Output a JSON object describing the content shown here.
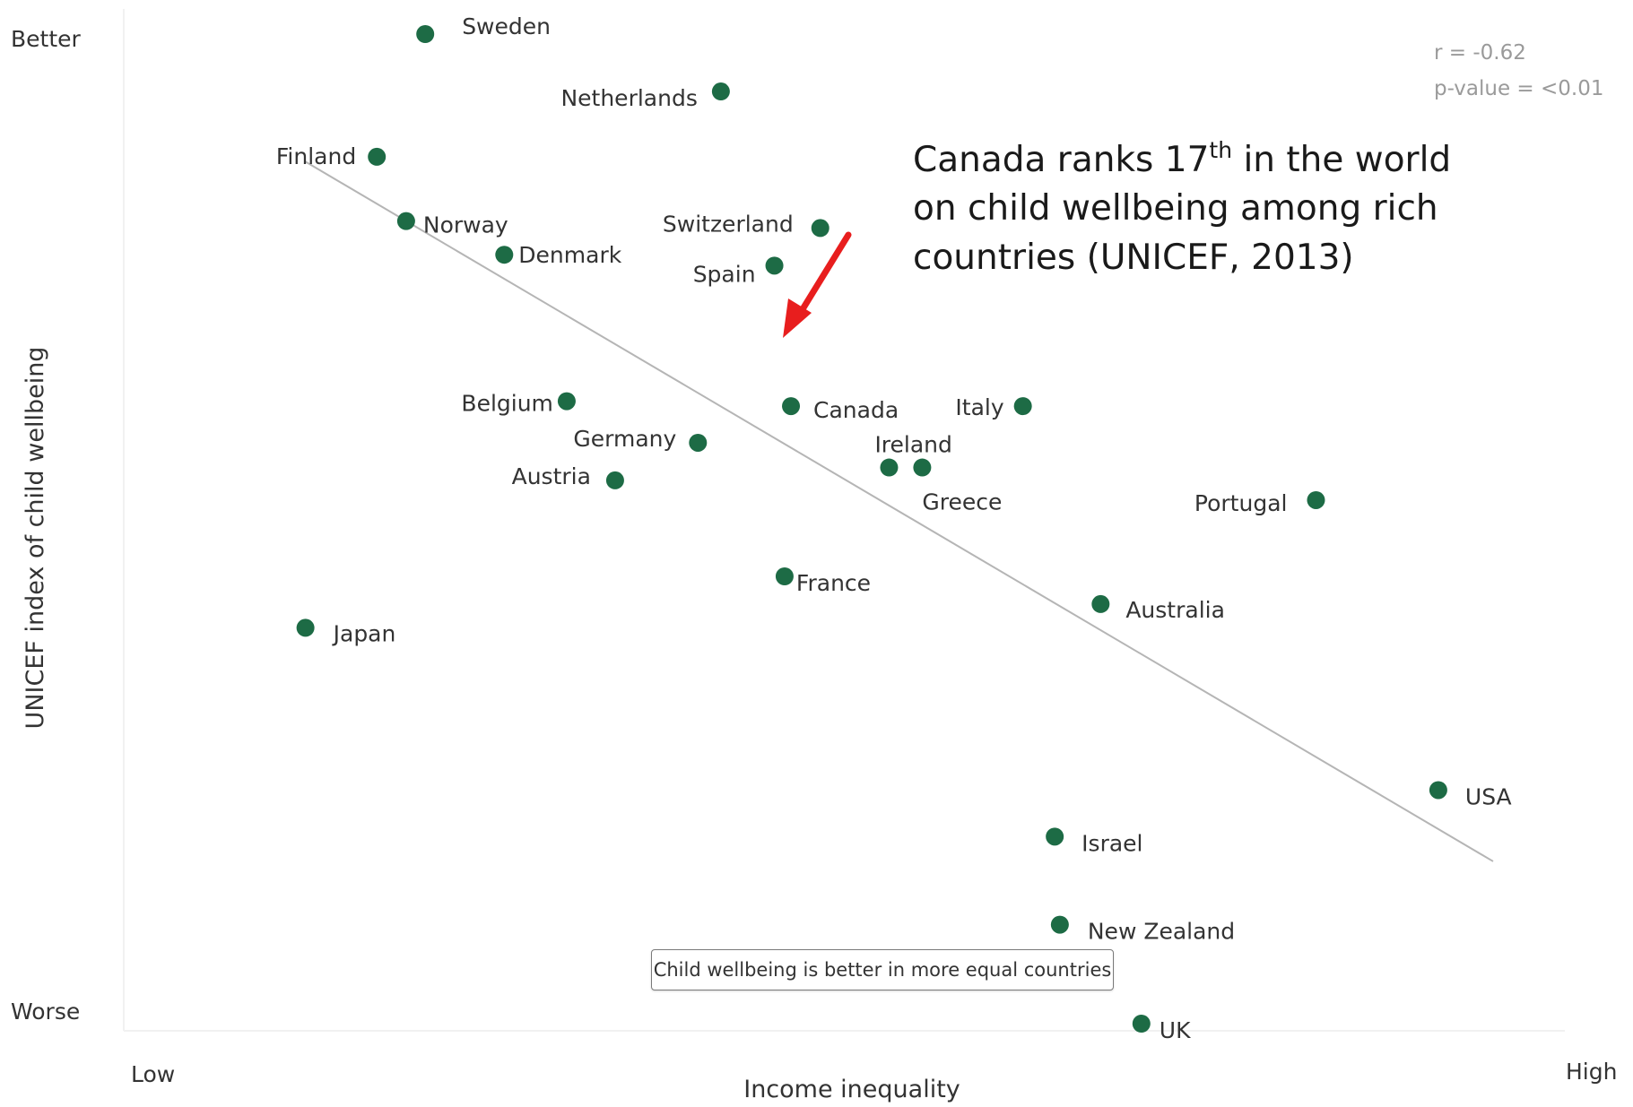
{
  "chart_data": {
    "type": "scatter",
    "xlabel": "Income inequality",
    "ylabel": "UNICEF index of child wellbeing",
    "x_tick_labels": {
      "low": "Low",
      "high": "High"
    },
    "y_tick_labels": {
      "top": "Better",
      "bottom": "Worse"
    },
    "xlim": [
      0,
      100
    ],
    "ylim": [
      0,
      100
    ],
    "points": [
      {
        "label": "Sweden",
        "x": 16.2,
        "y": 100.0
      },
      {
        "label": "Netherlands",
        "x": 39.4,
        "y": 94.2
      },
      {
        "label": "Finland",
        "x": 12.4,
        "y": 87.6
      },
      {
        "label": "Norway",
        "x": 14.7,
        "y": 81.1
      },
      {
        "label": "Switzerland",
        "x": 47.2,
        "y": 80.4
      },
      {
        "label": "Denmark",
        "x": 22.4,
        "y": 77.7
      },
      {
        "label": "Spain",
        "x": 43.6,
        "y": 76.6
      },
      {
        "label": "Belgium",
        "x": 27.3,
        "y": 62.9
      },
      {
        "label": "Canada",
        "x": 44.9,
        "y": 62.4
      },
      {
        "label": "Italy",
        "x": 63.1,
        "y": 62.4
      },
      {
        "label": "Germany",
        "x": 37.6,
        "y": 58.7
      },
      {
        "label": "Ireland",
        "x": 52.6,
        "y": 56.2
      },
      {
        "label": "Greece",
        "x": 55.2,
        "y": 56.2
      },
      {
        "label": "Austria",
        "x": 31.1,
        "y": 54.9
      },
      {
        "label": "Portugal",
        "x": 86.1,
        "y": 52.9
      },
      {
        "label": "France",
        "x": 44.4,
        "y": 45.2
      },
      {
        "label": "Australia",
        "x": 69.2,
        "y": 42.4
      },
      {
        "label": "Japan",
        "x": 6.8,
        "y": 40.0
      },
      {
        "label": "USA",
        "x": 95.7,
        "y": 23.6
      },
      {
        "label": "Israel",
        "x": 65.6,
        "y": 18.9
      },
      {
        "label": "New Zealand",
        "x": 66.0,
        "y": 10.0
      },
      {
        "label": "UK",
        "x": 72.4,
        "y": 0.0
      }
    ],
    "trendline": {
      "x": [
        6.8,
        100.0
      ],
      "y": [
        87.1,
        16.4
      ]
    },
    "stats": {
      "r": "r = -0.62",
      "p": "p-value = <0.01"
    },
    "point_color": "#1d6b45",
    "trendline_color": "#b5b5b5",
    "grid": false,
    "legend": "none",
    "annotation": {
      "line1_pre": "Canada ranks 17",
      "line1_sup": "th",
      "line1_post": " in the world",
      "line2": "on child wellbeing among rich",
      "line3": "countries (UNICEF, 2013)",
      "arrow_color": "#e81e1e",
      "points_to": "Canada"
    },
    "caption": "Child wellbeing is better in more equal countries"
  }
}
